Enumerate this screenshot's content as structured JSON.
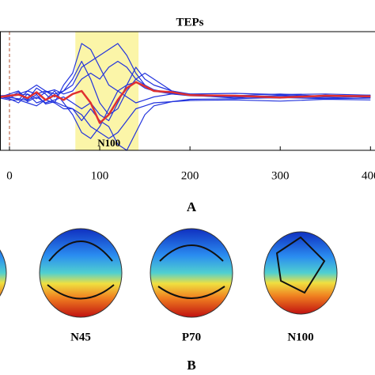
{
  "chart_data": {
    "type": "line",
    "title": "TEPs",
    "annotation": "N100",
    "x": [
      -10,
      0,
      10,
      20,
      30,
      40,
      50,
      60,
      70,
      80,
      90,
      100,
      110,
      120,
      130,
      140,
      150,
      160,
      180,
      200,
      250,
      300,
      350,
      400
    ],
    "series": [
      {
        "color": "#2233dd",
        "values": [
          0,
          0.5,
          1,
          -0.5,
          1.5,
          0.5,
          -1,
          2,
          4,
          9,
          8,
          5,
          2,
          1,
          0,
          -1,
          -0.5,
          0,
          0.5,
          0.3,
          -0.2,
          0.3,
          0,
          0.2
        ]
      },
      {
        "color": "#2233dd",
        "values": [
          0,
          -0.3,
          -1,
          0.5,
          -1,
          -0.5,
          1,
          -1,
          -3,
          -6,
          -7,
          -5,
          -2,
          1,
          2,
          2.5,
          1.5,
          1,
          0.5,
          0.2,
          0,
          -0.2,
          0.3,
          0
        ]
      },
      {
        "color": "#2233dd",
        "values": [
          0.2,
          0.3,
          0.5,
          1,
          0.5,
          1,
          0.5,
          1,
          2,
          5,
          6,
          7,
          8,
          9,
          7,
          4,
          2,
          1,
          0.8,
          0.5,
          0.6,
          0.4,
          0.5,
          0.3
        ]
      },
      {
        "color": "#2233dd",
        "values": [
          -0.2,
          -0.5,
          -0.5,
          -1,
          -1.5,
          -0.5,
          -1,
          -2,
          -2,
          -3,
          -5,
          -6,
          -7,
          -6,
          -4,
          -2,
          -1.5,
          -1,
          -0.8,
          -0.6,
          -0.5,
          -0.7,
          -0.4,
          -0.5
        ]
      },
      {
        "color": "#2233dd",
        "values": [
          0,
          0.2,
          -0.5,
          1,
          2,
          1,
          0,
          1,
          3,
          6,
          3,
          -1,
          -3,
          -2,
          1,
          3,
          4,
          3,
          1,
          0.5,
          0,
          0.2,
          -0.2,
          0.1
        ]
      },
      {
        "color": "#2233dd",
        "values": [
          0.1,
          0,
          0.8,
          -0.8,
          0,
          -1,
          -0.5,
          0,
          -1,
          -2,
          -1,
          -3,
          -4,
          -1,
          2,
          5,
          3,
          2,
          1,
          0.3,
          0.1,
          -0.1,
          0.2,
          -0.1
        ]
      },
      {
        "color": "#2233dd",
        "values": [
          -0.1,
          0.1,
          0.3,
          0.5,
          -0.3,
          0.8,
          1.2,
          0.5,
          1,
          3,
          4,
          3,
          5,
          6,
          5,
          3,
          2,
          1.2,
          0.6,
          0.4,
          0.2,
          0.5,
          0.1,
          0.3
        ]
      },
      {
        "color": "#2233dd",
        "values": [
          0,
          -0.1,
          -0.3,
          -0.6,
          0.4,
          -1.2,
          -0.8,
          -1.5,
          -2,
          -4,
          -2,
          -4,
          -5,
          -8,
          -9,
          -6,
          -3,
          -1.5,
          -0.8,
          -0.4,
          -0.3,
          -0.1,
          -0.3,
          -0.2
        ]
      },
      {
        "color": "#e03030",
        "values": [
          0,
          0.2,
          0.4,
          -0.2,
          0.8,
          -0.5,
          0.3,
          -0.5,
          0.5,
          1,
          -1,
          -4.4,
          -3,
          -0.5,
          1.5,
          2.5,
          1.8,
          1,
          0.8,
          0.3,
          0.2,
          -0.1,
          0.2,
          0.1
        ]
      }
    ],
    "xlim": [
      -10.5,
      405
    ],
    "ylim": [
      -9,
      11
    ],
    "xticks": [
      0,
      100,
      200,
      300,
      400
    ],
    "highlight": [
      73,
      143
    ],
    "highlight_color": "#fbf5a8",
    "marker_line": 0
  },
  "panel_a_label": "A",
  "topomap_labels": [
    "N45",
    "P70",
    "N100"
  ],
  "panel_b_label": "B"
}
